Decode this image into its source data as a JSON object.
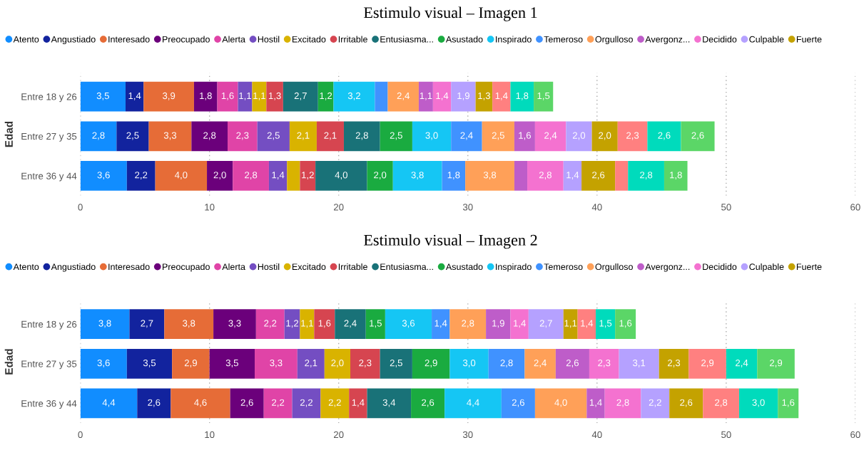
{
  "chart_data": [
    {
      "type": "bar",
      "orientation": "horizontal",
      "stacked": true,
      "title": "Estimulo visual – Imagen 1",
      "ylabel": "Edad",
      "categories": [
        "Entre 18 y 26",
        "Entre 27 y 35",
        "Entre 36 y 44"
      ],
      "xlim": [
        0,
        60
      ],
      "xticks": [
        0,
        10,
        20,
        30,
        40,
        50,
        60
      ],
      "grid": "x",
      "legend": "top",
      "series": [
        {
          "name": "Atento",
          "color": "#118dff",
          "values": [
            3.5,
            2.8,
            3.6
          ],
          "value_labels": [
            "3,5",
            "2,8",
            "3,6"
          ]
        },
        {
          "name": "Angustiado",
          "color": "#12239e",
          "values": [
            1.4,
            2.5,
            2.2
          ],
          "value_labels": [
            "1,4",
            "2,5",
            "2,2"
          ]
        },
        {
          "name": "Interesado",
          "color": "#e66c37",
          "values": [
            3.9,
            3.3,
            4.0
          ],
          "value_labels": [
            "3,9",
            "3,3",
            "4,0"
          ]
        },
        {
          "name": "Preocupado",
          "color": "#6b007b",
          "values": [
            1.8,
            2.8,
            2.0
          ],
          "value_labels": [
            "1,8",
            "2,8",
            "2,0"
          ]
        },
        {
          "name": "Alerta",
          "color": "#e044a7",
          "values": [
            1.6,
            2.3,
            2.8
          ],
          "value_labels": [
            "1,6",
            "2,3",
            "2,8"
          ]
        },
        {
          "name": "Hostil",
          "color": "#744ec2",
          "values": [
            1.1,
            2.5,
            1.4
          ],
          "value_labels": [
            "1,1",
            "2,5",
            "1,4"
          ]
        },
        {
          "name": "Excitado",
          "color": "#d9b300",
          "values": [
            1.1,
            2.1,
            1.0
          ],
          "value_labels": [
            "1,1",
            "2,1",
            null
          ]
        },
        {
          "name": "Irritable",
          "color": "#d64550",
          "values": [
            1.3,
            2.1,
            1.2
          ],
          "value_labels": [
            "1,3",
            "2,1",
            "1,2"
          ]
        },
        {
          "name": "Entusiasma...",
          "color": "#197278",
          "values": [
            2.7,
            2.8,
            4.0
          ],
          "value_labels": [
            "2,7",
            "2,8",
            "4,0"
          ]
        },
        {
          "name": "Asustado",
          "color": "#1aab40",
          "values": [
            1.2,
            2.5,
            2.0
          ],
          "value_labels": [
            "1,2",
            "2,5",
            "2,0"
          ]
        },
        {
          "name": "Inspirado",
          "color": "#15c6f4",
          "values": [
            3.2,
            3.0,
            3.8
          ],
          "value_labels": [
            "3,2",
            "3,0",
            "3,8"
          ]
        },
        {
          "name": "Temeroso",
          "color": "#4092ff",
          "values": [
            1.0,
            2.4,
            1.8
          ],
          "value_labels": [
            null,
            "2,4",
            "1,8"
          ]
        },
        {
          "name": "Orgulloso",
          "color": "#ffa058",
          "values": [
            2.4,
            2.5,
            3.8
          ],
          "value_labels": [
            "2,4",
            "2,5",
            "3,8"
          ]
        },
        {
          "name": "Avergonz...",
          "color": "#be5dc9",
          "values": [
            1.1,
            1.6,
            1.0
          ],
          "value_labels": [
            "1,1",
            "1,6",
            null
          ]
        },
        {
          "name": "Decidido",
          "color": "#f472d0",
          "values": [
            1.4,
            2.4,
            2.8
          ],
          "value_labels": [
            "1,4",
            "2,4",
            "2,8"
          ]
        },
        {
          "name": "Culpable",
          "color": "#b5a1ff",
          "values": [
            1.9,
            2.0,
            1.4
          ],
          "value_labels": [
            "1,9",
            "2,0",
            "1,4"
          ]
        },
        {
          "name": "Fuerte",
          "color": "#c4a200",
          "values": [
            1.3,
            2.0,
            2.6
          ],
          "value_labels": [
            "1,3",
            "2,0",
            "2,6"
          ]
        },
        {
          "color": "#ff8080",
          "values": [
            1.4,
            2.3,
            1.0
          ],
          "value_labels": [
            "1,4",
            "2,3",
            null
          ]
        },
        {
          "color": "#00dbbc",
          "values": [
            1.8,
            2.6,
            2.8
          ],
          "value_labels": [
            "1,8",
            "2,6",
            "2,8"
          ]
        },
        {
          "color": "#5bd667",
          "values": [
            1.5,
            2.6,
            1.8
          ],
          "value_labels": [
            "1,5",
            "2,6",
            "1,8"
          ]
        }
      ]
    },
    {
      "type": "bar",
      "orientation": "horizontal",
      "stacked": true,
      "title": "Estimulo visual – Imagen 2",
      "ylabel": "Edad",
      "categories": [
        "Entre 18 y 26",
        "Entre 27 y 35",
        "Entre 36 y 44"
      ],
      "xlim": [
        0,
        60
      ],
      "xticks": [
        0,
        10,
        20,
        30,
        40,
        50,
        60
      ],
      "grid": "x",
      "legend": "top",
      "series": [
        {
          "name": "Atento",
          "color": "#118dff",
          "values": [
            3.8,
            3.6,
            4.4
          ],
          "value_labels": [
            "3,8",
            "3,6",
            "4,4"
          ]
        },
        {
          "name": "Angustiado",
          "color": "#12239e",
          "values": [
            2.7,
            3.5,
            2.6
          ],
          "value_labels": [
            "2,7",
            "3,5",
            "2,6"
          ]
        },
        {
          "name": "Interesado",
          "color": "#e66c37",
          "values": [
            3.8,
            2.9,
            4.6
          ],
          "value_labels": [
            "3,8",
            "2,9",
            "4,6"
          ]
        },
        {
          "name": "Preocupado",
          "color": "#6b007b",
          "values": [
            3.3,
            3.5,
            2.6
          ],
          "value_labels": [
            "3,3",
            "3,5",
            "2,6"
          ]
        },
        {
          "name": "Alerta",
          "color": "#e044a7",
          "values": [
            2.2,
            3.3,
            2.2
          ],
          "value_labels": [
            "2,2",
            "3,3",
            "2,2"
          ]
        },
        {
          "name": "Hostil",
          "color": "#744ec2",
          "values": [
            1.2,
            2.1,
            2.2
          ],
          "value_labels": [
            "1,2",
            "2,1",
            "2,2"
          ]
        },
        {
          "name": "Excitado",
          "color": "#d9b300",
          "values": [
            1.1,
            2.0,
            2.2
          ],
          "value_labels": [
            "1,1",
            "2,0",
            "2,2"
          ]
        },
        {
          "name": "Irritable",
          "color": "#d64550",
          "values": [
            1.6,
            2.3,
            1.4
          ],
          "value_labels": [
            "1,6",
            "2,3",
            "1,4"
          ]
        },
        {
          "name": "Entusiasma...",
          "color": "#197278",
          "values": [
            2.4,
            2.5,
            3.4
          ],
          "value_labels": [
            "2,4",
            "2,5",
            "3,4"
          ]
        },
        {
          "name": "Asustado",
          "color": "#1aab40",
          "values": [
            1.5,
            2.9,
            2.6
          ],
          "value_labels": [
            "1,5",
            "2,9",
            "2,6"
          ]
        },
        {
          "name": "Inspirado",
          "color": "#15c6f4",
          "values": [
            3.6,
            3.0,
            4.4
          ],
          "value_labels": [
            "3,6",
            "3,0",
            "4,4"
          ]
        },
        {
          "name": "Temeroso",
          "color": "#4092ff",
          "values": [
            1.4,
            2.8,
            2.6
          ],
          "value_labels": [
            "1,4",
            "2,8",
            "2,6"
          ]
        },
        {
          "name": "Orgulloso",
          "color": "#ffa058",
          "values": [
            2.8,
            2.4,
            4.0
          ],
          "value_labels": [
            "2,8",
            "2,4",
            "4,0"
          ]
        },
        {
          "name": "Avergonz...",
          "color": "#be5dc9",
          "values": [
            1.9,
            2.6,
            1.4
          ],
          "value_labels": [
            "1,9",
            "2,6",
            "1,4"
          ]
        },
        {
          "name": "Decidido",
          "color": "#f472d0",
          "values": [
            1.4,
            2.3,
            2.8
          ],
          "value_labels": [
            "1,4",
            "2,3",
            "2,8"
          ]
        },
        {
          "name": "Culpable",
          "color": "#b5a1ff",
          "values": [
            2.7,
            3.1,
            2.2
          ],
          "value_labels": [
            "2,7",
            "3,1",
            "2,2"
          ]
        },
        {
          "name": "Fuerte",
          "color": "#c4a200",
          "values": [
            1.1,
            2.3,
            2.6
          ],
          "value_labels": [
            "1,1",
            "2,3",
            "2,6"
          ]
        },
        {
          "color": "#ff8080",
          "values": [
            1.4,
            2.9,
            2.8
          ],
          "value_labels": [
            "1,4",
            "2,9",
            "2,8"
          ]
        },
        {
          "color": "#00dbbc",
          "values": [
            1.5,
            2.4,
            3.0
          ],
          "value_labels": [
            "1,5",
            "2,4",
            "3,0"
          ]
        },
        {
          "color": "#5bd667",
          "values": [
            1.6,
            2.9,
            1.6
          ],
          "value_labels": [
            "1,6",
            "2,9",
            "1,6"
          ]
        }
      ]
    }
  ]
}
